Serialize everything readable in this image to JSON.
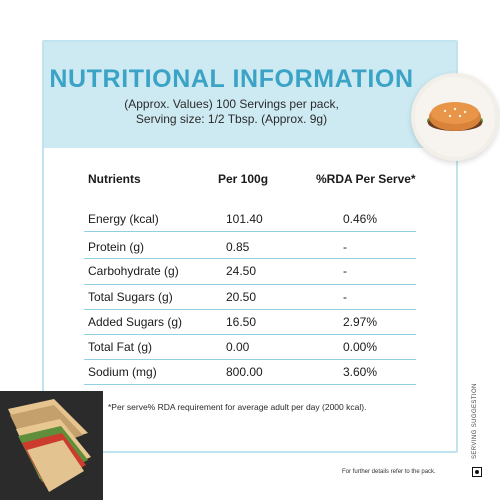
{
  "title": "NUTRITIONAL INFORMATION",
  "subtitle_line1": "(Approx. Values) 100 Servings per pack,",
  "subtitle_line2": "Serving size: 1/2 Tbsp. (Approx. 9g)",
  "table": {
    "headers": [
      "Nutrients",
      "Per 100g",
      "%RDA Per Serve*"
    ],
    "rows": [
      {
        "nutrient": "Energy (kcal)",
        "per100g": "101.40",
        "rda": "0.46%"
      },
      {
        "nutrient": "Protein (g)",
        "per100g": "0.85",
        "rda": "-"
      },
      {
        "nutrient": "Carbohydrate (g)",
        "per100g": "24.50",
        "rda": "-"
      },
      {
        "nutrient": "Total Sugars (g)",
        "per100g": "20.50",
        "rda": "-"
      },
      {
        "nutrient": "Added Sugars (g)",
        "per100g": "16.50",
        "rda": "2.97%"
      },
      {
        "nutrient": "Total Fat (g)",
        "per100g": "0.00",
        "rda": "0.00%"
      },
      {
        "nutrient": "Sodium (mg)",
        "per100g": "800.00",
        "rda": "3.60%"
      }
    ]
  },
  "footnote": "*Per serve% RDA requirement for average adult per day (2000 kcal).",
  "side_note": "SERVING SUGGESTION",
  "bottom_note": "For further details refer to the pack.",
  "colors": {
    "title": "#3aa3c6",
    "header_band": "#cdeaf3",
    "border": "#bfe4ef",
    "rule": "#8fd0e2"
  },
  "icons": {
    "burger": "burger-image",
    "sandwich": "sandwich-image",
    "veg_mark": "veg-mark-icon"
  }
}
